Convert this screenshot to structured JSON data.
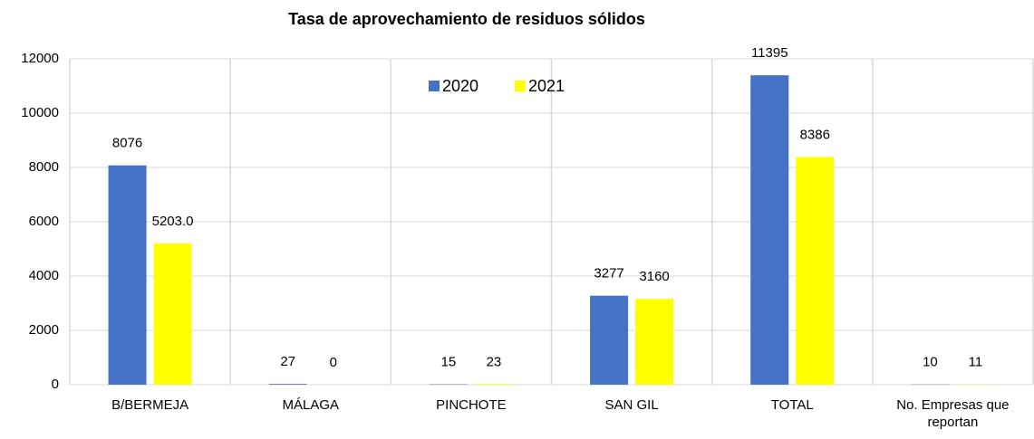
{
  "chart_data": {
    "type": "bar",
    "title": "Tasa de aprovechamiento de residuos sólidos",
    "categories": [
      "B/BERMEJA",
      "MÁLAGA",
      "PINCHOTE",
      "SAN GIL",
      "TOTAL",
      "No. Empresas que reportan"
    ],
    "series": [
      {
        "name": "2020",
        "color": "#4472c4",
        "values": [
          8076,
          27,
          15,
          3277,
          11395,
          10
        ]
      },
      {
        "name": "2021",
        "color": "#ffff00",
        "values": [
          5203,
          0,
          23,
          3160,
          8386,
          11
        ],
        "value_labels": [
          "5203.0",
          "0",
          "23",
          "3160",
          "8386",
          "11"
        ]
      }
    ],
    "ylim": [
      0,
      12000
    ],
    "yticks": [
      0,
      2000,
      4000,
      6000,
      8000,
      10000,
      12000
    ],
    "grid": true,
    "legend": "top"
  }
}
